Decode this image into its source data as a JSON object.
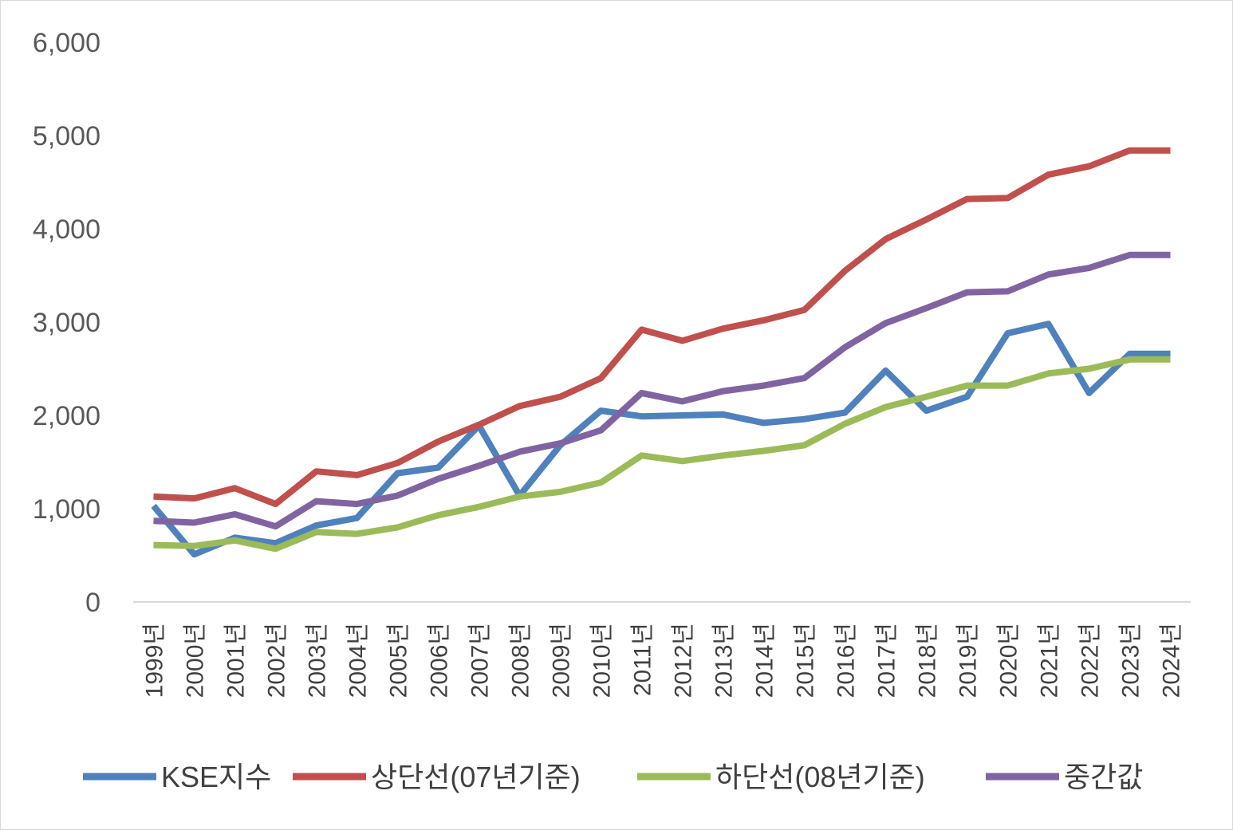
{
  "chart_data": {
    "type": "line",
    "title": "",
    "xlabel": "",
    "ylabel": "",
    "ylim": [
      0,
      6000
    ],
    "yticks": [
      0,
      1000,
      2000,
      3000,
      4000,
      5000,
      6000
    ],
    "ytick_labels": [
      "0",
      "1,000",
      "2,000",
      "3,000",
      "4,000",
      "5,000",
      "6,000"
    ],
    "categories": [
      "1999년",
      "2000년",
      "2001년",
      "2002년",
      "2003년",
      "2004년",
      "2005년",
      "2006년",
      "2007년",
      "2008년",
      "2009년",
      "2010년",
      "2011년",
      "2012년",
      "2013년",
      "2014년",
      "2015년",
      "2016년",
      "2017년",
      "2018년",
      "2019년",
      "2020년",
      "2021년",
      "2022년",
      "2023년",
      "2024년"
    ],
    "legend_position": "bottom",
    "grid": false,
    "series": [
      {
        "name": "KSE지수",
        "color": "#4f81bd",
        "values": [
          1030,
          510,
          690,
          630,
          820,
          900,
          1380,
          1440,
          1890,
          1140,
          1680,
          2050,
          1990,
          2000,
          2010,
          1920,
          1960,
          2030,
          2480,
          2050,
          2200,
          2880,
          2980,
          2240,
          2660,
          2660
        ]
      },
      {
        "name": "상단선(07년기준)",
        "color": "#c0504d",
        "values": [
          1130,
          1110,
          1220,
          1050,
          1400,
          1360,
          1490,
          1720,
          1900,
          2100,
          2200,
          2400,
          2920,
          2800,
          2930,
          3020,
          3130,
          3550,
          3890,
          4100,
          4320,
          4330,
          4580,
          4670,
          4840,
          4840
        ]
      },
      {
        "name": "하단선(08년기준)",
        "color": "#9bbb59",
        "values": [
          610,
          600,
          660,
          570,
          750,
          730,
          800,
          930,
          1020,
          1130,
          1180,
          1280,
          1570,
          1510,
          1570,
          1620,
          1680,
          1910,
          2090,
          2200,
          2320,
          2320,
          2450,
          2500,
          2600,
          2600
        ]
      },
      {
        "name": "중간값",
        "color": "#8064a2",
        "values": [
          870,
          850,
          940,
          810,
          1080,
          1050,
          1140,
          1320,
          1460,
          1610,
          1700,
          1840,
          2240,
          2150,
          2260,
          2320,
          2400,
          2730,
          2990,
          3150,
          3320,
          3330,
          3510,
          3580,
          3720,
          3720
        ]
      }
    ]
  }
}
